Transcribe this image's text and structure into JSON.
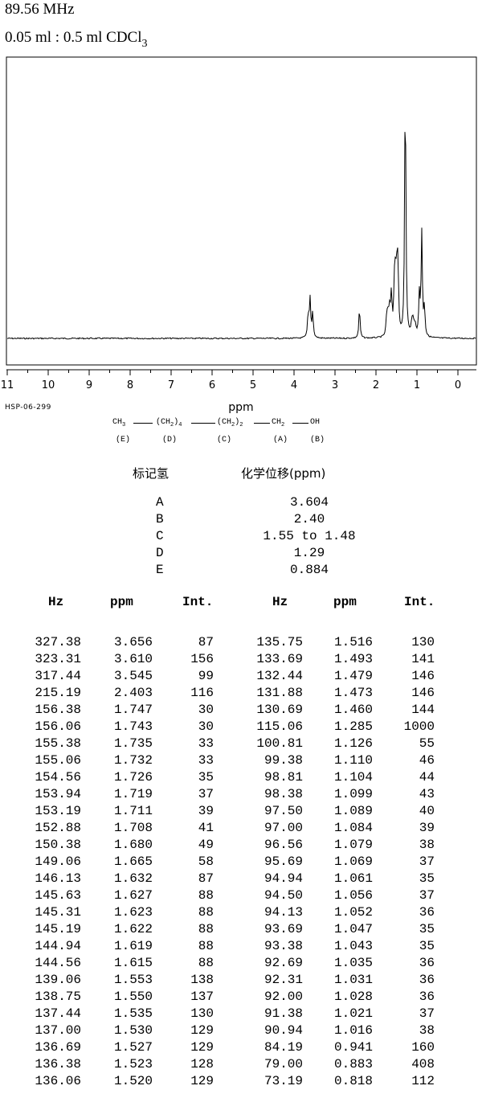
{
  "header": {
    "frequency": "89.56 MHz",
    "sample_prefix": "0.05 ml : 0.5 ml CDCl",
    "sample_subscript": "3"
  },
  "chart_data": {
    "type": "line",
    "xlabel": "ppm",
    "xlim": [
      11,
      0
    ],
    "x_reversed": true,
    "x_ticks": [
      "11",
      "10",
      "9",
      "8",
      "7",
      "6",
      "5",
      "4",
      "3",
      "2",
      "1",
      "0"
    ],
    "series": [
      {
        "peaks": [
          {
            "ppm": 3.656,
            "intensity": 87
          },
          {
            "ppm": 3.61,
            "intensity": 156
          },
          {
            "ppm": 3.545,
            "intensity": 99
          },
          {
            "ppm": 2.403,
            "intensity": 116
          },
          {
            "ppm": 1.747,
            "intensity": 30
          },
          {
            "ppm": 1.735,
            "intensity": 33
          },
          {
            "ppm": 1.719,
            "intensity": 37
          },
          {
            "ppm": 1.708,
            "intensity": 41
          },
          {
            "ppm": 1.68,
            "intensity": 49
          },
          {
            "ppm": 1.665,
            "intensity": 58
          },
          {
            "ppm": 1.632,
            "intensity": 87
          },
          {
            "ppm": 1.619,
            "intensity": 88
          },
          {
            "ppm": 1.553,
            "intensity": 138
          },
          {
            "ppm": 1.535,
            "intensity": 130
          },
          {
            "ppm": 1.516,
            "intensity": 130
          },
          {
            "ppm": 1.493,
            "intensity": 141
          },
          {
            "ppm": 1.473,
            "intensity": 146
          },
          {
            "ppm": 1.46,
            "intensity": 144
          },
          {
            "ppm": 1.285,
            "intensity": 1000
          },
          {
            "ppm": 1.126,
            "intensity": 55
          },
          {
            "ppm": 1.099,
            "intensity": 43
          },
          {
            "ppm": 1.069,
            "intensity": 37
          },
          {
            "ppm": 1.035,
            "intensity": 36
          },
          {
            "ppm": 0.941,
            "intensity": 160
          },
          {
            "ppm": 0.883,
            "intensity": 408
          },
          {
            "ppm": 0.818,
            "intensity": 112
          }
        ]
      }
    ]
  },
  "spectrum_code": "HSP-06-299",
  "structure": {
    "groups": [
      {
        "main": "CH",
        "sub": "3",
        "label": "(E)"
      },
      {
        "main": "(CH",
        "sub": "2",
        "tail": ")",
        "count": "4",
        "label": "(D)"
      },
      {
        "main": "(CH",
        "sub": "2",
        "tail": ")",
        "count": "2",
        "label": "(C)"
      },
      {
        "main": "CH",
        "sub": "2",
        "label": "(A)"
      },
      {
        "main": "OH",
        "label": "(B)"
      }
    ]
  },
  "assignment": {
    "header_label": "标记氢",
    "header_shift": "化学位移(ppm)",
    "rows": [
      {
        "letter": "A",
        "shift": "3.604"
      },
      {
        "letter": "B",
        "shift": "2.40"
      },
      {
        "letter": "C",
        "shift": "1.55 to 1.48"
      },
      {
        "letter": "D",
        "shift": "1.29"
      },
      {
        "letter": "E",
        "shift": "0.884"
      }
    ]
  },
  "peak_table": {
    "headers": [
      "Hz",
      "ppm",
      "Int.",
      "Hz",
      "ppm",
      "Int."
    ],
    "left": [
      [
        "327.38",
        "3.656",
        "87"
      ],
      [
        "323.31",
        "3.610",
        "156"
      ],
      [
        "317.44",
        "3.545",
        "99"
      ],
      [
        "215.19",
        "2.403",
        "116"
      ],
      [
        "156.38",
        "1.747",
        "30"
      ],
      [
        "156.06",
        "1.743",
        "30"
      ],
      [
        "155.38",
        "1.735",
        "33"
      ],
      [
        "155.06",
        "1.732",
        "33"
      ],
      [
        "154.56",
        "1.726",
        "35"
      ],
      [
        "153.94",
        "1.719",
        "37"
      ],
      [
        "153.19",
        "1.711",
        "39"
      ],
      [
        "152.88",
        "1.708",
        "41"
      ],
      [
        "150.38",
        "1.680",
        "49"
      ],
      [
        "149.06",
        "1.665",
        "58"
      ],
      [
        "146.13",
        "1.632",
        "87"
      ],
      [
        "145.63",
        "1.627",
        "88"
      ],
      [
        "145.31",
        "1.623",
        "88"
      ],
      [
        "145.19",
        "1.622",
        "88"
      ],
      [
        "144.94",
        "1.619",
        "88"
      ],
      [
        "144.56",
        "1.615",
        "88"
      ],
      [
        "139.06",
        "1.553",
        "138"
      ],
      [
        "138.75",
        "1.550",
        "137"
      ],
      [
        "137.44",
        "1.535",
        "130"
      ],
      [
        "137.00",
        "1.530",
        "129"
      ],
      [
        "136.69",
        "1.527",
        "129"
      ],
      [
        "136.38",
        "1.523",
        "128"
      ],
      [
        "136.06",
        "1.520",
        "129"
      ]
    ],
    "right": [
      [
        "135.75",
        "1.516",
        "130"
      ],
      [
        "133.69",
        "1.493",
        "141"
      ],
      [
        "132.44",
        "1.479",
        "146"
      ],
      [
        "131.88",
        "1.473",
        "146"
      ],
      [
        "130.69",
        "1.460",
        "144"
      ],
      [
        "115.06",
        "1.285",
        "1000"
      ],
      [
        "100.81",
        "1.126",
        "55"
      ],
      [
        "99.38",
        "1.110",
        "46"
      ],
      [
        "98.81",
        "1.104",
        "44"
      ],
      [
        "98.38",
        "1.099",
        "43"
      ],
      [
        "97.50",
        "1.089",
        "40"
      ],
      [
        "97.00",
        "1.084",
        "39"
      ],
      [
        "96.56",
        "1.079",
        "38"
      ],
      [
        "95.69",
        "1.069",
        "37"
      ],
      [
        "94.94",
        "1.061",
        "35"
      ],
      [
        "94.50",
        "1.056",
        "37"
      ],
      [
        "94.13",
        "1.052",
        "36"
      ],
      [
        "93.69",
        "1.047",
        "35"
      ],
      [
        "93.38",
        "1.043",
        "35"
      ],
      [
        "92.69",
        "1.035",
        "36"
      ],
      [
        "92.31",
        "1.031",
        "36"
      ],
      [
        "92.00",
        "1.028",
        "36"
      ],
      [
        "91.38",
        "1.021",
        "37"
      ],
      [
        "90.94",
        "1.016",
        "38"
      ],
      [
        "84.19",
        "0.941",
        "160"
      ],
      [
        "79.00",
        "0.883",
        "408"
      ],
      [
        "73.19",
        "0.818",
        "112"
      ]
    ]
  }
}
